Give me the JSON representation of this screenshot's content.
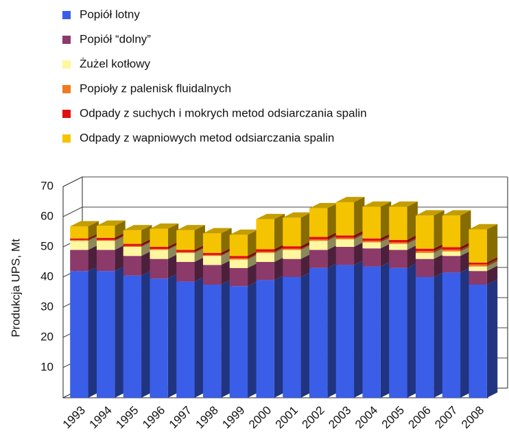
{
  "chart_data": {
    "type": "bar3d_stacked",
    "y_axis_label": "Produkcja UPS, Mt",
    "categories": [
      "1993",
      "1994",
      "1995",
      "1996",
      "1997",
      "1998",
      "1999",
      "2000",
      "2001",
      "2002",
      "2003",
      "2004",
      "2005",
      "2006",
      "2007",
      "2008"
    ],
    "series": [
      {
        "name": "Popiół lotny",
        "color": "#3a5ee8",
        "values": [
          42,
          42,
          40.5,
          39.5,
          38.5,
          37.5,
          37,
          39,
          40,
          43,
          44,
          43.5,
          43,
          40,
          41.5,
          37.5
        ]
      },
      {
        "name": "Popiół “dolny”",
        "color": "#8b3a6a",
        "values": [
          7,
          7,
          6.5,
          6.5,
          6.5,
          6.5,
          6,
          6,
          6,
          6,
          6,
          6,
          6,
          6,
          5.5,
          4.5
        ]
      },
      {
        "name": "Żużel kotłowy",
        "color": "#fff7a0",
        "values": [
          3,
          3,
          3,
          3,
          3,
          3,
          2.8,
          3,
          3,
          3,
          2.5,
          2,
          2,
          2,
          1.5,
          1.5
        ]
      },
      {
        "name": "Popioły z palenisk fluidalnych",
        "color": "#f07a20",
        "values": [
          0.3,
          0.3,
          0.3,
          0.3,
          0.3,
          0.3,
          0.4,
          0.4,
          0.4,
          0.5,
          0.5,
          0.5,
          0.5,
          0.6,
          0.6,
          0.7
        ]
      },
      {
        "name": "Odpady z suchych i mokrych metod odsiarczania spalin",
        "color": "#e01010",
        "values": [
          0.5,
          0.7,
          0.7,
          0.7,
          0.7,
          0.7,
          0.8,
          0.8,
          0.8,
          0.8,
          0.8,
          0.8,
          0.8,
          0.8,
          0.8,
          0.6
        ]
      },
      {
        "name": "Odpady z wapniowych metod odsiarczania spalin",
        "color": "#f5c400",
        "values": [
          4,
          4,
          4.5,
          6,
          6.5,
          6.5,
          7,
          10,
          9.5,
          9.5,
          11,
          10.5,
          11,
          11,
          10.5,
          11
        ]
      }
    ],
    "ylim": [
      0,
      70
    ],
    "yticks": [
      10,
      20,
      30,
      40,
      50,
      60,
      70
    ],
    "grid": true
  }
}
